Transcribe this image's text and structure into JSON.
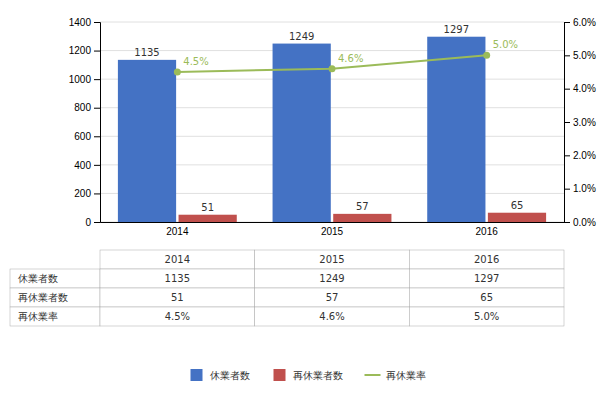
{
  "chart_data": {
    "type": "bar",
    "categories": [
      "2014",
      "2015",
      "2016"
    ],
    "series": [
      {
        "name": "休業者数",
        "color": "#4472C4",
        "values": [
          1135,
          1249,
          1297
        ]
      },
      {
        "name": "再休業者数",
        "color": "#C0504D",
        "values": [
          51,
          57,
          65
        ]
      },
      {
        "name": "再休業率",
        "type": "line",
        "axis": "y2",
        "color": "#9BBB59",
        "marker": "circle",
        "values": [
          4.5,
          4.6,
          5.0
        ],
        "value_labels": [
          "4.5%",
          "4.6%",
          "5.0%"
        ]
      }
    ],
    "ylim": [
      0,
      1400
    ],
    "yticks": [
      0,
      200,
      400,
      600,
      800,
      1000,
      1200,
      1400
    ],
    "y2lim": [
      0,
      6.0
    ],
    "y2ticks": [
      {
        "value": 0.0,
        "label": "0.0%"
      },
      {
        "value": 1.0,
        "label": "1.0%"
      },
      {
        "value": 2.0,
        "label": "2.0%"
      },
      {
        "value": 3.0,
        "label": "3.0%"
      },
      {
        "value": 4.0,
        "label": "4.0%"
      },
      {
        "value": 5.0,
        "label": "5.0%"
      },
      {
        "value": 6.0,
        "label": "6.0%"
      }
    ],
    "grid": true,
    "data_labels": true,
    "legend": "bottom"
  }
}
